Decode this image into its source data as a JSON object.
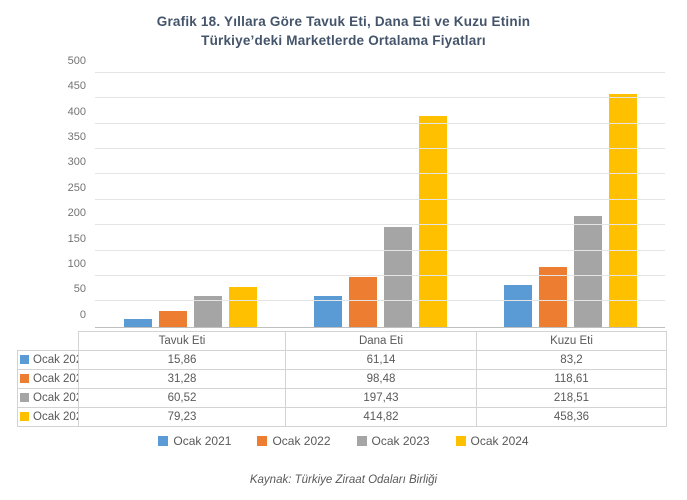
{
  "title": {
    "line1": "Grafik 18. Yıllara Göre Tavuk Eti, Dana Eti ve Kuzu Etinin",
    "line2": "Türkiye’deki Marketlerde Ortalama Fiyatları"
  },
  "source": "Kaynak: Türkiye Ziraat Odaları Birliği",
  "chart_data": {
    "type": "bar",
    "title": "Grafik 18. Yıllara Göre Tavuk Eti, Dana Eti ve Kuzu Etinin Türkiye’deki Marketlerde Ortalama Fiyatları",
    "categories": [
      "Tavuk Eti",
      "Dana Eti",
      "Kuzu Eti"
    ],
    "series": [
      {
        "name": "Ocak 2021",
        "color": "#5B9BD5",
        "values": [
          15.86,
          61.14,
          83.2
        ],
        "labels": [
          "15,86",
          "61,14",
          "83,2"
        ]
      },
      {
        "name": "Ocak 2022",
        "color": "#ED7D31",
        "values": [
          31.28,
          98.48,
          118.61
        ],
        "labels": [
          "31,28",
          "98,48",
          "118,61"
        ]
      },
      {
        "name": "Ocak 2023",
        "color": "#A5A5A5",
        "values": [
          60.52,
          197.43,
          218.51
        ],
        "labels": [
          "60,52",
          "197,43",
          "218,51"
        ]
      },
      {
        "name": "Ocak 2024",
        "color": "#FFC000",
        "values": [
          79.23,
          414.82,
          458.36
        ],
        "labels": [
          "79,23",
          "414,82",
          "458,36"
        ]
      }
    ],
    "ylim": [
      0,
      500
    ],
    "ytick_step": 50,
    "yticks": [
      "0",
      "50",
      "100",
      "150",
      "200",
      "250",
      "300",
      "350",
      "400",
      "450",
      "500"
    ],
    "grid": true,
    "legend_position": "bottom",
    "xlabel": "",
    "ylabel": ""
  }
}
